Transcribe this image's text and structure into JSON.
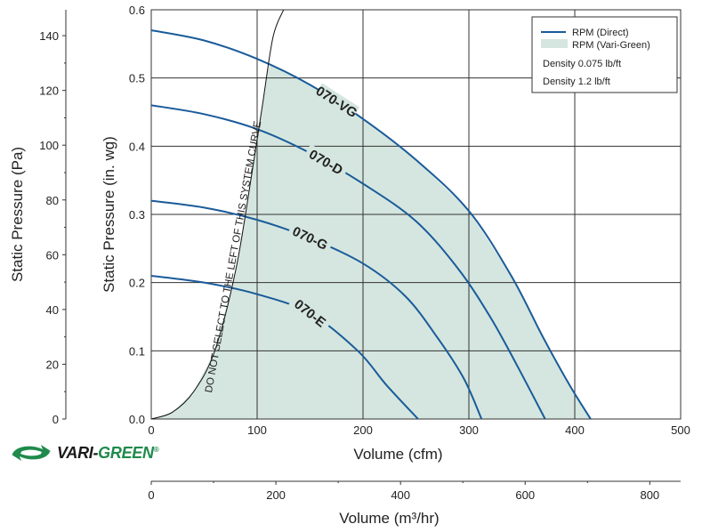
{
  "chart_data": {
    "type": "line",
    "xlabel": "Volume (cfm)",
    "ylabel": "Static Pressure (in. wg)",
    "xlim": [
      0,
      500
    ],
    "ylim": [
      0,
      0.6
    ],
    "x_ticks": [
      "0",
      "100",
      "200",
      "300",
      "400",
      "500"
    ],
    "y_ticks": [
      "0.0",
      "0.1",
      "0.2",
      "0.3",
      "0.4",
      "0.5",
      "0.6"
    ],
    "grid": true,
    "secondary_y": {
      "label": "Static Pressure (Pa)",
      "ticks": [
        0,
        20,
        40,
        60,
        80,
        100,
        120,
        140
      ]
    },
    "secondary_x": {
      "label": "Volume (m³/hr)",
      "ticks": [
        0,
        200,
        400,
        600,
        800
      ]
    },
    "series": [
      {
        "name": "070-VG",
        "points": [
          [
            0,
            0.57
          ],
          [
            50,
            0.555
          ],
          [
            100,
            0.528
          ],
          [
            150,
            0.49
          ],
          [
            200,
            0.44
          ],
          [
            250,
            0.38
          ],
          [
            300,
            0.305
          ],
          [
            340,
            0.21
          ],
          [
            370,
            0.12
          ],
          [
            395,
            0.05
          ],
          [
            415,
            0.0
          ]
        ]
      },
      {
        "name": "070-D",
        "points": [
          [
            0,
            0.46
          ],
          [
            50,
            0.447
          ],
          [
            100,
            0.425
          ],
          [
            150,
            0.39
          ],
          [
            200,
            0.345
          ],
          [
            250,
            0.29
          ],
          [
            290,
            0.22
          ],
          [
            320,
            0.15
          ],
          [
            345,
            0.08
          ],
          [
            372,
            0.0
          ]
        ]
      },
      {
        "name": "070-G",
        "points": [
          [
            0,
            0.32
          ],
          [
            50,
            0.31
          ],
          [
            100,
            0.292
          ],
          [
            150,
            0.265
          ],
          [
            200,
            0.228
          ],
          [
            240,
            0.18
          ],
          [
            270,
            0.12
          ],
          [
            295,
            0.06
          ],
          [
            312,
            0.0
          ]
        ]
      },
      {
        "name": "070-E",
        "points": [
          [
            0,
            0.21
          ],
          [
            50,
            0.2
          ],
          [
            100,
            0.183
          ],
          [
            150,
            0.155
          ],
          [
            195,
            0.1
          ],
          [
            222,
            0.05
          ],
          [
            252,
            0.0
          ]
        ]
      }
    ],
    "system_curve": {
      "label": "DO NOT SELECT TO THE LEFT OF THIS SYSTEM CURVE",
      "points": [
        [
          0,
          0.0
        ],
        [
          20,
          0.01
        ],
        [
          40,
          0.04
        ],
        [
          60,
          0.1
        ],
        [
          80,
          0.22
        ],
        [
          95,
          0.36
        ],
        [
          105,
          0.46
        ],
        [
          115,
          0.56
        ],
        [
          125,
          0.6
        ]
      ]
    },
    "vari_green_region": {
      "label": "RPM (Vari-Green)",
      "color": "#d4e6df"
    },
    "legend": {
      "position": "top-right",
      "entries": [
        {
          "label": "RPM (Direct)",
          "kind": "line",
          "color": "#1a5b9a"
        },
        {
          "label": "RPM (Vari-Green)",
          "kind": "patch",
          "color": "#d4e6df"
        }
      ],
      "notes": [
        "Density 0.075 lb/ft",
        "Density 1.2 lb/ft"
      ]
    }
  },
  "branding": {
    "logo_icon": "vari-green-arrows-icon",
    "logo_word_1": "VARI-",
    "logo_word_2": "GREEN",
    "logo_mark": "®",
    "colors": {
      "logo_green": "#1f8a4c",
      "logo_dark": "#1a1a1a"
    }
  }
}
